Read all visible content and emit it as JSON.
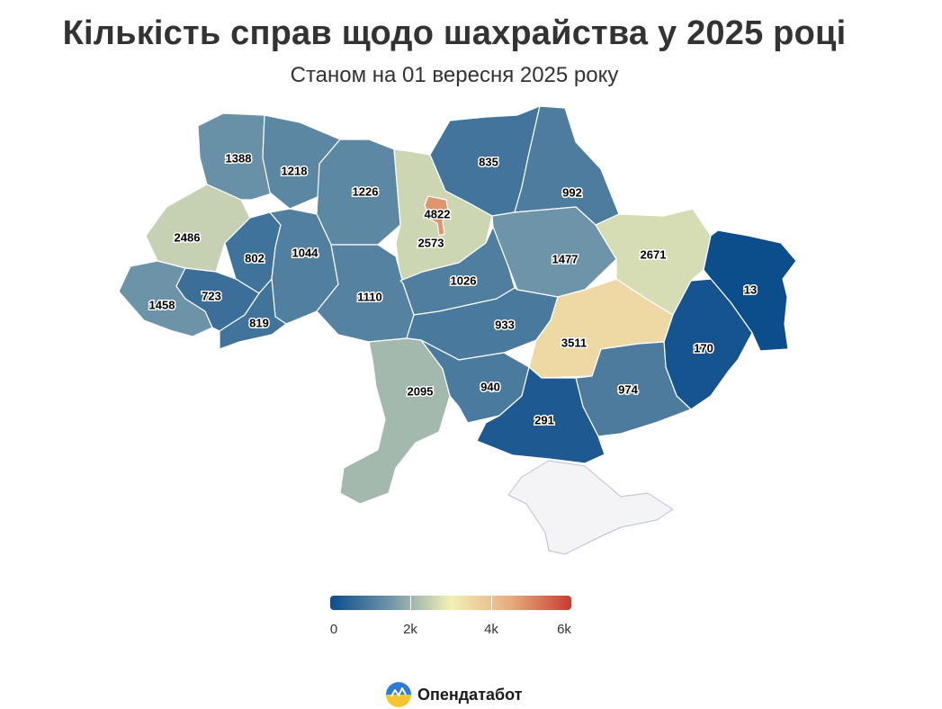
{
  "header": {
    "title": "Кількість справ щодо шахрайства у 2025 році",
    "subtitle": "Станом на 01 вересня 2025 року"
  },
  "legend": {
    "min": 0,
    "max": 6000,
    "ticks": [
      "0",
      "2k",
      "4k",
      "6k"
    ],
    "colors": [
      "#0b4c8c",
      "#6f95a8",
      "#f3f0b8",
      "#e5ad7d",
      "#c83b32"
    ]
  },
  "regions": [
    {
      "name": "Volyn",
      "value": 1388
    },
    {
      "name": "Rivne",
      "value": 1218
    },
    {
      "name": "Zhytomyr",
      "value": 1226
    },
    {
      "name": "Kyiv city",
      "value": 4822
    },
    {
      "name": "Kyiv oblast",
      "value": 2573
    },
    {
      "name": "Chernihiv",
      "value": 835
    },
    {
      "name": "Sumy",
      "value": 992
    },
    {
      "name": "Lviv",
      "value": 2486
    },
    {
      "name": "Ternopil",
      "value": 802
    },
    {
      "name": "Khmelnytskyi",
      "value": 1044
    },
    {
      "name": "Vinnytsia",
      "value": 1110
    },
    {
      "name": "Cherkasy",
      "value": 1026
    },
    {
      "name": "Poltava",
      "value": 1477
    },
    {
      "name": "Kharkiv",
      "value": 2671
    },
    {
      "name": "Luhansk",
      "value": 13
    },
    {
      "name": "Zakarpattia",
      "value": 1458
    },
    {
      "name": "Ivano-Frankivsk",
      "value": 723
    },
    {
      "name": "Chernivtsi",
      "value": 819
    },
    {
      "name": "Kirovohrad",
      "value": 933
    },
    {
      "name": "Dnipropetrovsk",
      "value": 3511
    },
    {
      "name": "Donetsk",
      "value": 170
    },
    {
      "name": "Odesa",
      "value": 2095
    },
    {
      "name": "Mykolaiv",
      "value": 940
    },
    {
      "name": "Zaporizhzhia",
      "value": 974
    },
    {
      "name": "Kherson",
      "value": 291
    },
    {
      "name": "Crimea",
      "value": null,
      "color": "#f4f4f7"
    }
  ],
  "brand": {
    "name": "Опендатабот"
  }
}
